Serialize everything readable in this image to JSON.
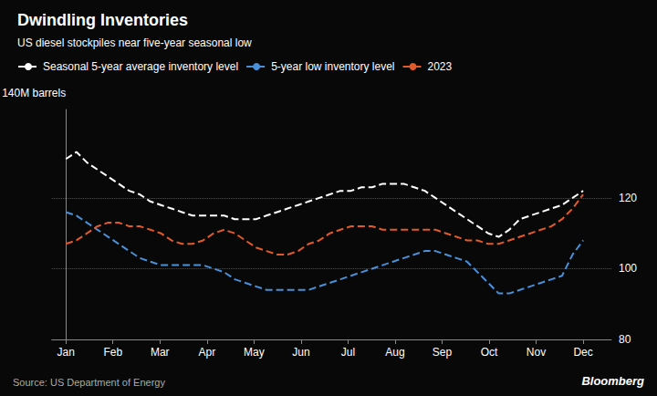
{
  "chart_data": {
    "type": "line",
    "title": "Dwindling Inventories",
    "subtitle": "US diesel stockpiles near five-year seasonal low",
    "ylabel": "140M barrels",
    "source": "Source: US Department of Energy",
    "annotations": [
      "Bloomberg"
    ],
    "x": [
      0,
      0.22449,
      0.44898,
      0.673469,
      0.897959,
      1.122449,
      1.346939,
      1.571429,
      1.795918,
      2.020408,
      2.244898,
      2.469388,
      2.693878,
      2.918367,
      3.142857,
      3.367347,
      3.591837,
      3.816327,
      4.040816,
      4.265306,
      4.489796,
      4.714286,
      4.938776,
      5.163265,
      5.387755,
      5.612245,
      5.836735,
      6.061224,
      6.285714,
      6.510204,
      6.734694,
      6.959184,
      7.183673,
      7.408163,
      7.632653,
      7.857143,
      8.081633,
      8.306122,
      8.530612,
      8.755102,
      8.979592,
      9.204082,
      9.428571,
      9.653061,
      9.877551,
      10.102041,
      10.326531,
      10.55102,
      10.77551,
      11
    ],
    "series": [
      {
        "name": "Seasonal 5-year average inventory level",
        "color": "#ffffff",
        "line_style": "dashed",
        "values": [
          131,
          133,
          130,
          128,
          126,
          124,
          122,
          121,
          119,
          118,
          117,
          116,
          115,
          115,
          115,
          115,
          114,
          114,
          114,
          115,
          116,
          117,
          118,
          119,
          120,
          121,
          122,
          122,
          123,
          123,
          124,
          124,
          124,
          123,
          122,
          120,
          118,
          116,
          114,
          112,
          110,
          109,
          111,
          114,
          115,
          116,
          117,
          118,
          120,
          122
        ]
      },
      {
        "name": "5-year low inventory level",
        "color": "#4a90d9",
        "line_style": "dashed",
        "values": [
          116,
          115,
          113,
          111,
          109,
          107,
          105,
          103,
          102,
          101,
          101,
          101,
          101,
          101,
          100,
          99,
          97,
          96,
          95,
          94,
          94,
          94,
          94,
          94,
          95,
          96,
          97,
          98,
          99,
          100,
          101,
          102,
          103,
          104,
          105,
          105,
          104,
          103,
          102,
          99,
          96,
          93,
          93,
          94,
          95,
          96,
          97,
          98,
          104,
          108
        ]
      },
      {
        "name": "2023",
        "color": "#e05a2b",
        "line_style": "dashed",
        "values": [
          107,
          108,
          110,
          112,
          113,
          113,
          112,
          112,
          111,
          110,
          108,
          107,
          107,
          108,
          110,
          111,
          110,
          108,
          106,
          105,
          104,
          104,
          105,
          107,
          108,
          110,
          111,
          112,
          112,
          112,
          111,
          111,
          111,
          111,
          111,
          111,
          110,
          109,
          108,
          108,
          107,
          107,
          108,
          109,
          110,
          111,
          112,
          114,
          117,
          121
        ]
      }
    ],
    "xlim": [
      -0.3,
      11.6
    ],
    "xticks": [
      {
        "value": 0,
        "label": "Jan"
      },
      {
        "value": 1,
        "label": "Feb"
      },
      {
        "value": 2,
        "label": "Mar"
      },
      {
        "value": 3,
        "label": "Apr"
      },
      {
        "value": 4,
        "label": "May"
      },
      {
        "value": 5,
        "label": "Jun"
      },
      {
        "value": 6,
        "label": "Jul"
      },
      {
        "value": 7,
        "label": "Aug"
      },
      {
        "value": 8,
        "label": "Sep"
      },
      {
        "value": 9,
        "label": "Oct"
      },
      {
        "value": 10,
        "label": "Nov"
      },
      {
        "value": 11,
        "label": "Dec"
      }
    ],
    "ylim": [
      80,
      145
    ],
    "yticks": [
      80,
      100,
      120
    ],
    "grid": true,
    "legend": "top left"
  }
}
